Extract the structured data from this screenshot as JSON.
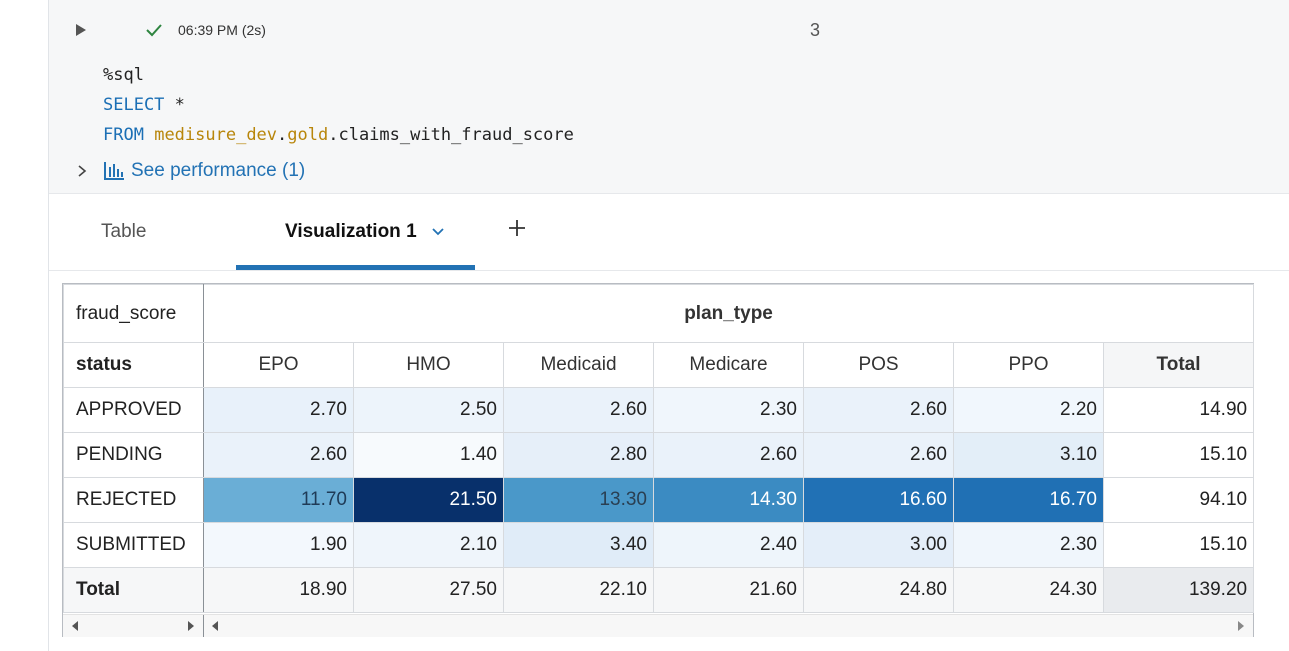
{
  "cell": {
    "run_time": "06:39 PM (2s)",
    "cell_number": "3",
    "code": {
      "line1": "%sql",
      "line2_kw": "SELECT",
      "line2_rest": " *",
      "line3_kw": "FROM",
      "line3_schema1": "medisure_dev",
      "line3_dot1": ".",
      "line3_schema2": "gold",
      "line3_rest": ".claims_with_fraud_score"
    },
    "performance_link": "See performance (1)"
  },
  "tabs": {
    "table_label": "Table",
    "viz_label": "Visualization 1"
  },
  "pivot": {
    "value_label": "fraud_score",
    "column_field": "plan_type",
    "row_field": "status",
    "columns": [
      "EPO",
      "HMO",
      "Medicaid",
      "Medicare",
      "POS",
      "PPO"
    ],
    "total_label": "Total",
    "rows": [
      {
        "label": "APPROVED",
        "values": [
          "2.70",
          "2.50",
          "2.60",
          "2.30",
          "2.60",
          "2.20"
        ],
        "total": "14.90"
      },
      {
        "label": "PENDING",
        "values": [
          "2.60",
          "1.40",
          "2.80",
          "2.60",
          "2.60",
          "3.10"
        ],
        "total": "15.10"
      },
      {
        "label": "REJECTED",
        "values": [
          "11.70",
          "21.50",
          "13.30",
          "14.30",
          "16.60",
          "16.70"
        ],
        "total": "94.10"
      },
      {
        "label": "SUBMITTED",
        "values": [
          "1.90",
          "2.10",
          "3.40",
          "2.40",
          "3.00",
          "2.30"
        ],
        "total": "15.10"
      }
    ],
    "totals_row": {
      "label": "Total",
      "values": [
        "18.90",
        "27.50",
        "22.10",
        "21.60",
        "24.80",
        "24.30"
      ],
      "total": "139.20"
    },
    "heat_colors": [
      [
        "#e8f1fa",
        "#edf4fb",
        "#eaf2fa",
        "#f0f6fc",
        "#eaf2fa",
        "#f1f7fd"
      ],
      [
        "#eaf2fa",
        "#f7fafd",
        "#e6eff9",
        "#eaf2fa",
        "#eaf2fa",
        "#e3eef8"
      ],
      [
        "#6aaed6",
        "#08306b",
        "#4a98c9",
        "#3b8bc2",
        "#2171b5",
        "#2070b4"
      ],
      [
        "#f3f8fd",
        "#eff5fb",
        "#e0ecf8",
        "#eef5fb",
        "#e4eef9",
        "#f0f6fc"
      ]
    ],
    "heat_text_white": [
      [
        false,
        false,
        false,
        false,
        false,
        false
      ],
      [
        false,
        false,
        false,
        false,
        false,
        false
      ],
      [
        false,
        true,
        false,
        true,
        true,
        true
      ],
      [
        false,
        false,
        false,
        false,
        false,
        false
      ]
    ]
  }
}
